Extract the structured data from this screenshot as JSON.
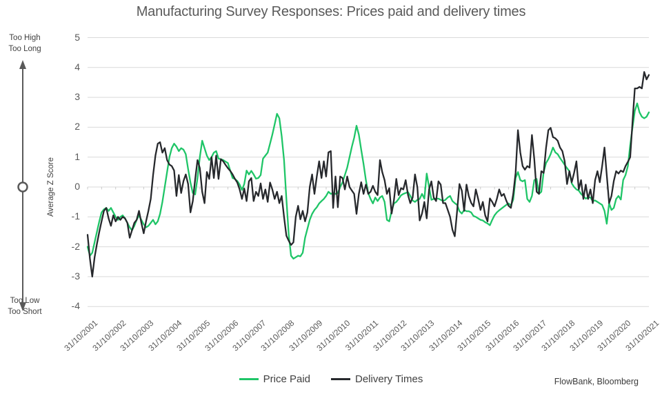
{
  "title": "Manufacturing Survey Responses: Prices paid and delivery times",
  "annotation_left": {
    "top_line1": "Too High",
    "top_line2": "Too Long",
    "bottom_line1": "Too Low",
    "bottom_line2": "Too Short"
  },
  "source": "FlowBank, Bloomberg",
  "colors": {
    "price_paid": "#1fc567",
    "delivery_times": "#26282c",
    "grid": "#d9d9d9",
    "axis_text": "#595959",
    "annotation": "#595959"
  },
  "chart_data": {
    "type": "line",
    "title": "Manufacturing Survey Responses: Prices paid and delivery times",
    "xlabel": "",
    "ylabel": "Average Z Score",
    "ylim": [
      -4,
      5
    ],
    "yticks": [
      5,
      4,
      3,
      2,
      1,
      0,
      -1,
      -2,
      -3,
      -4
    ],
    "grid": "horizontal",
    "legend_position": "bottom",
    "x_frequency": "monthly",
    "x_start": "31/10/2001",
    "x_end": "31/10/2021",
    "x_tick_labels": [
      "31/10/2001",
      "31/10/2002",
      "31/10/2003",
      "31/10/2004",
      "31/10/2005",
      "31/10/2006",
      "31/10/2007",
      "31/10/2008",
      "31/10/2009",
      "31/10/2010",
      "31/10/2011",
      "31/10/2012",
      "31/10/2013",
      "31/10/2014",
      "31/10/2015",
      "31/10/2016",
      "31/10/2017",
      "31/10/2018",
      "31/10/2019",
      "31/10/2020",
      "31/10/2021"
    ],
    "series": [
      {
        "name": "Price Paid",
        "color": "#1fc567",
        "values": [
          -2.0,
          -2.3,
          -2.2,
          -1.85,
          -1.5,
          -1.15,
          -0.85,
          -0.75,
          -0.7,
          -0.8,
          -0.7,
          -0.85,
          -1.0,
          -1.1,
          -1.0,
          -0.95,
          -1.05,
          -1.2,
          -1.35,
          -1.45,
          -1.3,
          -1.1,
          -0.95,
          -1.1,
          -1.25,
          -1.35,
          -1.3,
          -1.2,
          -1.1,
          -1.25,
          -1.15,
          -0.9,
          -0.5,
          0.0,
          0.5,
          1.0,
          1.3,
          1.45,
          1.35,
          1.2,
          1.3,
          1.25,
          1.1,
          0.6,
          0.15,
          -0.2,
          -0.25,
          0.3,
          1.0,
          1.55,
          1.3,
          1.05,
          0.9,
          1.0,
          1.15,
          1.2,
          0.95,
          0.93,
          0.9,
          0.85,
          0.8,
          0.55,
          0.3,
          0.27,
          0.2,
          0.08,
          -0.1,
          0.1,
          0.55,
          0.42,
          0.54,
          0.42,
          0.28,
          0.3,
          0.4,
          0.95,
          1.05,
          1.15,
          1.45,
          1.75,
          2.1,
          2.45,
          2.3,
          1.7,
          0.9,
          -0.4,
          -1.6,
          -2.3,
          -2.4,
          -2.35,
          -2.3,
          -2.32,
          -2.2,
          -1.7,
          -1.4,
          -1.1,
          -0.9,
          -0.77,
          -0.68,
          -0.55,
          -0.47,
          -0.4,
          -0.3,
          -0.16,
          -0.23,
          -0.2,
          -0.23,
          -0.2,
          0.0,
          0.16,
          0.4,
          0.65,
          1.0,
          1.35,
          1.65,
          2.05,
          1.75,
          1.25,
          0.77,
          0.23,
          -0.2,
          -0.4,
          -0.55,
          -0.35,
          -0.47,
          -0.35,
          -0.3,
          -0.5,
          -1.1,
          -1.15,
          -0.8,
          -0.55,
          -0.5,
          -0.4,
          -0.28,
          -0.23,
          -0.2,
          -0.17,
          -0.3,
          -0.45,
          -0.5,
          -0.43,
          -0.4,
          -0.23,
          -0.39,
          0.45,
          0.0,
          -0.43,
          -0.4,
          -0.39,
          -0.39,
          -0.43,
          -0.47,
          -0.43,
          -0.35,
          -0.3,
          -0.47,
          -0.54,
          -0.6,
          -0.81,
          -0.89,
          -0.77,
          -0.81,
          -0.81,
          -0.85,
          -0.97,
          -1.0,
          -1.05,
          -1.1,
          -1.12,
          -1.18,
          -1.22,
          -1.28,
          -1.1,
          -0.95,
          -0.85,
          -0.78,
          -0.72,
          -0.66,
          -0.6,
          -0.55,
          -0.62,
          -0.42,
          0.3,
          0.5,
          0.23,
          0.19,
          0.23,
          -0.4,
          -0.5,
          -0.3,
          0.23,
          0.27,
          -0.23,
          -0.16,
          0.5,
          0.8,
          0.93,
          1.1,
          1.32,
          1.16,
          1.1,
          0.97,
          0.86,
          0.74,
          0.63,
          0.53,
          0.12,
          0.0,
          -0.08,
          -0.12,
          -0.23,
          -0.3,
          -0.39,
          -0.35,
          -0.35,
          -0.47,
          -0.45,
          -0.5,
          -0.55,
          -0.6,
          -0.8,
          -1.23,
          -0.54,
          -0.77,
          -0.7,
          -0.4,
          -0.3,
          -0.42,
          0.23,
          0.4,
          0.7,
          1.4,
          2.0,
          2.55,
          2.8,
          2.5,
          2.35,
          2.3,
          2.35,
          2.5
        ]
      },
      {
        "name": "Delivery Times",
        "color": "#26282c",
        "values": [
          -1.6,
          -2.4,
          -3.0,
          -2.35,
          -1.9,
          -1.5,
          -1.15,
          -0.8,
          -0.7,
          -1.05,
          -1.3,
          -0.95,
          -1.15,
          -1.0,
          -1.1,
          -1.0,
          -1.05,
          -1.2,
          -1.7,
          -1.45,
          -1.2,
          -1.1,
          -0.8,
          -1.2,
          -1.55,
          -1.15,
          -0.8,
          -0.4,
          0.4,
          1.05,
          1.45,
          1.5,
          1.15,
          1.3,
          0.9,
          0.75,
          0.7,
          0.55,
          -0.3,
          0.4,
          -0.2,
          0.2,
          0.42,
          0.1,
          -0.85,
          -0.47,
          0.25,
          0.9,
          0.63,
          -0.16,
          -0.54,
          0.5,
          0.27,
          1.0,
          0.3,
          1.05,
          0.27,
          0.93,
          0.86,
          0.74,
          0.63,
          0.54,
          0.42,
          0.27,
          0.15,
          -0.08,
          -0.4,
          -0.05,
          -0.47,
          0.19,
          0.3,
          -0.47,
          -0.16,
          -0.3,
          0.12,
          -0.4,
          -0.08,
          -0.5,
          0.15,
          -0.08,
          -0.4,
          -0.16,
          -0.54,
          -0.3,
          -1.0,
          -1.63,
          -1.8,
          -1.94,
          -1.85,
          -1.0,
          -0.63,
          -1.08,
          -0.8,
          -1.15,
          -0.85,
          0.0,
          0.42,
          -0.23,
          0.35,
          0.86,
          0.3,
          0.86,
          0.35,
          1.16,
          1.2,
          -0.7,
          0.35,
          -0.68,
          0.35,
          0.3,
          -0.08,
          0.35,
          0.0,
          -0.12,
          -0.23,
          -0.9,
          -0.23,
          0.16,
          -0.23,
          0.08,
          -0.23,
          -0.16,
          0.04,
          -0.16,
          -0.27,
          0.9,
          0.5,
          0.23,
          -0.23,
          -0.04,
          -0.89,
          -0.43,
          0.27,
          -0.27,
          -0.04,
          -0.08,
          0.23,
          -0.27,
          -0.54,
          -0.35,
          0.42,
          0.0,
          -1.12,
          -0.89,
          -0.5,
          -1.05,
          -0.08,
          0.19,
          -0.35,
          -0.47,
          0.19,
          0.08,
          -0.54,
          -0.54,
          -0.77,
          -1.0,
          -1.43,
          -1.65,
          -0.8,
          0.1,
          -0.12,
          -0.8,
          0.08,
          -0.3,
          -0.53,
          -0.65,
          -0.08,
          -0.4,
          -0.77,
          -0.5,
          -0.95,
          -1.15,
          -0.38,
          -0.5,
          -0.65,
          -0.4,
          -0.08,
          -0.3,
          -0.23,
          -0.45,
          -0.63,
          -0.7,
          -0.23,
          0.47,
          1.9,
          1.16,
          0.7,
          0.58,
          0.7,
          0.65,
          1.74,
          0.93,
          -0.16,
          -0.23,
          0.53,
          0.47,
          1.3,
          1.9,
          1.98,
          1.67,
          1.63,
          1.55,
          1.32,
          1.2,
          0.86,
          0.1,
          0.53,
          0.16,
          0.47,
          0.86,
          -0.08,
          0.23,
          -0.4,
          0.08,
          -0.4,
          -0.08,
          -0.54,
          0.23,
          0.53,
          0.16,
          0.7,
          1.32,
          0.4,
          -0.54,
          -0.3,
          0.2,
          0.53,
          0.45,
          0.55,
          0.5,
          0.7,
          0.84,
          1.0,
          2.2,
          3.3,
          3.3,
          3.35,
          3.3,
          3.85,
          3.6,
          3.75
        ]
      }
    ]
  }
}
